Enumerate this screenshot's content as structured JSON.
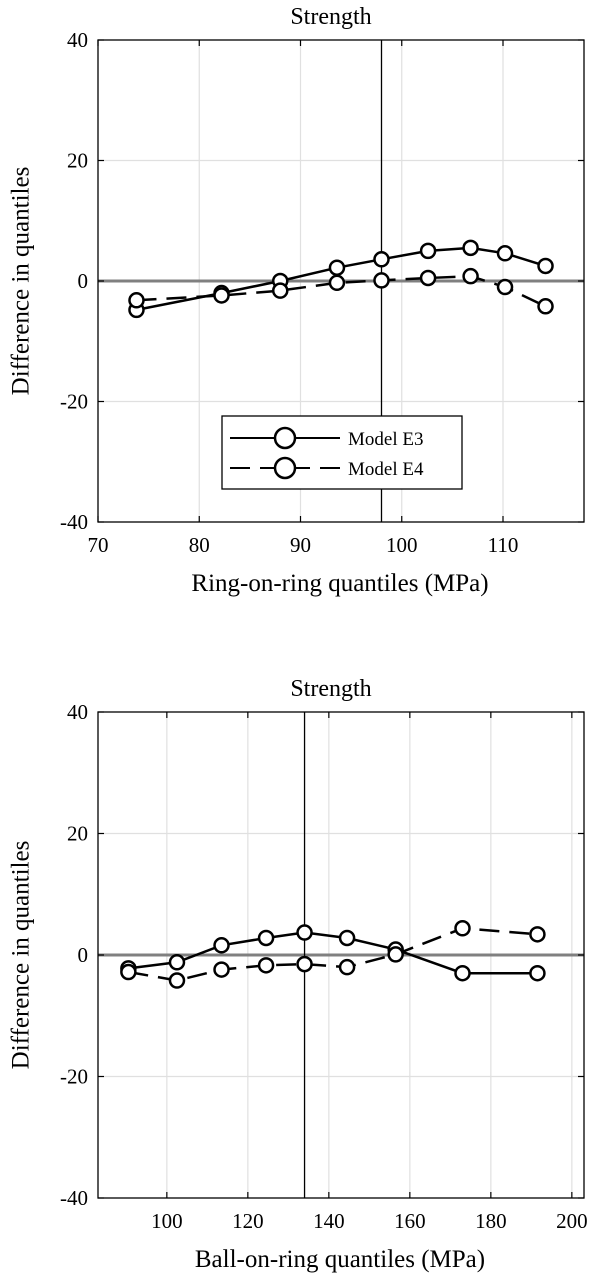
{
  "chart_data": [
    {
      "type": "line",
      "title": "Strength",
      "xlabel": "Ring-on-ring quantiles (MPa)",
      "ylabel": "Difference in quantiles",
      "xlim": [
        70,
        118
      ],
      "ylim": [
        -40,
        40
      ],
      "xticks": [
        70,
        80,
        90,
        100,
        110
      ],
      "yticks": [
        -40,
        -20,
        0,
        20,
        40
      ],
      "grid": true,
      "zero_line": 0,
      "vertical_line": 98.0,
      "legend_position": "lower-center",
      "series": [
        {
          "name": "Model E3",
          "style": "solid",
          "x": [
            73.8,
            82.2,
            88.0,
            93.6,
            98.0,
            102.6,
            106.8,
            110.2,
            114.2
          ],
          "y": [
            -4.8,
            -2.0,
            0.0,
            2.2,
            3.6,
            5.0,
            5.5,
            4.6,
            2.5
          ]
        },
        {
          "name": "Model E4",
          "style": "dashed",
          "x": [
            73.8,
            82.2,
            88.0,
            93.6,
            98.0,
            102.6,
            106.8,
            110.2,
            114.2
          ],
          "y": [
            -3.2,
            -2.4,
            -1.6,
            -0.3,
            0.1,
            0.5,
            0.8,
            -1.0,
            -4.2
          ]
        }
      ]
    },
    {
      "type": "line",
      "title": "Strength",
      "xlabel": "Ball-on-ring quantiles (MPa)",
      "ylabel": "Difference in quantiles",
      "xlim": [
        83,
        203
      ],
      "ylim": [
        -40,
        40
      ],
      "xticks": [
        100,
        120,
        140,
        160,
        180,
        200
      ],
      "yticks": [
        -40,
        -20,
        0,
        20,
        40
      ],
      "grid": true,
      "zero_line": 0,
      "vertical_line": 134.0,
      "series": [
        {
          "name": "Model E3",
          "style": "solid",
          "x": [
            90.5,
            102.5,
            113.5,
            124.5,
            134.0,
            144.5,
            156.5,
            173.0,
            191.5
          ],
          "y": [
            -2.2,
            -1.2,
            1.6,
            2.8,
            3.7,
            2.8,
            0.9,
            -3.0,
            -3.0
          ]
        },
        {
          "name": "Model E4",
          "style": "dashed",
          "x": [
            90.5,
            102.5,
            113.5,
            124.5,
            134.0,
            144.5,
            156.5,
            173.0,
            191.5
          ],
          "y": [
            -2.8,
            -4.2,
            -2.4,
            -1.7,
            -1.5,
            -2.0,
            0.1,
            4.4,
            3.4
          ]
        }
      ]
    }
  ]
}
